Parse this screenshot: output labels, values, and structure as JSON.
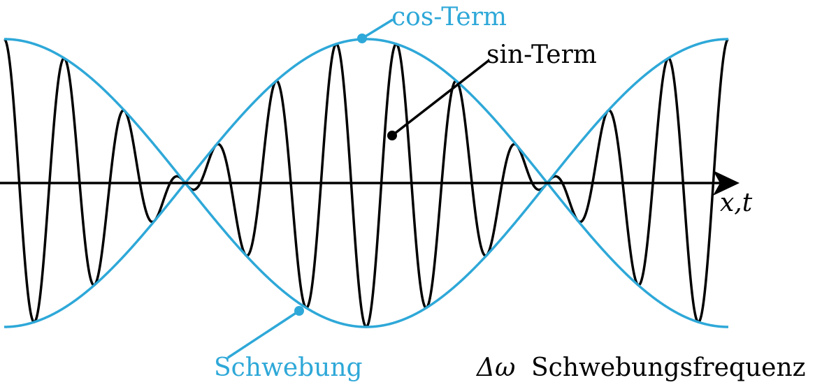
{
  "labels": {
    "cos_term": "cos-Term",
    "sin_term": "sin-Term",
    "schwebung": "Schwebung",
    "axis": "x,t",
    "delta_omega": "Δω",
    "schwebungsfrequenz": "Schwebungsfrequenz"
  },
  "colors": {
    "envelope": "#2ea8d8",
    "carrier": "#000000",
    "axis": "#000000"
  },
  "waves": {
    "carrier_cycles": 12,
    "envelope_zero_crossings": 2
  }
}
